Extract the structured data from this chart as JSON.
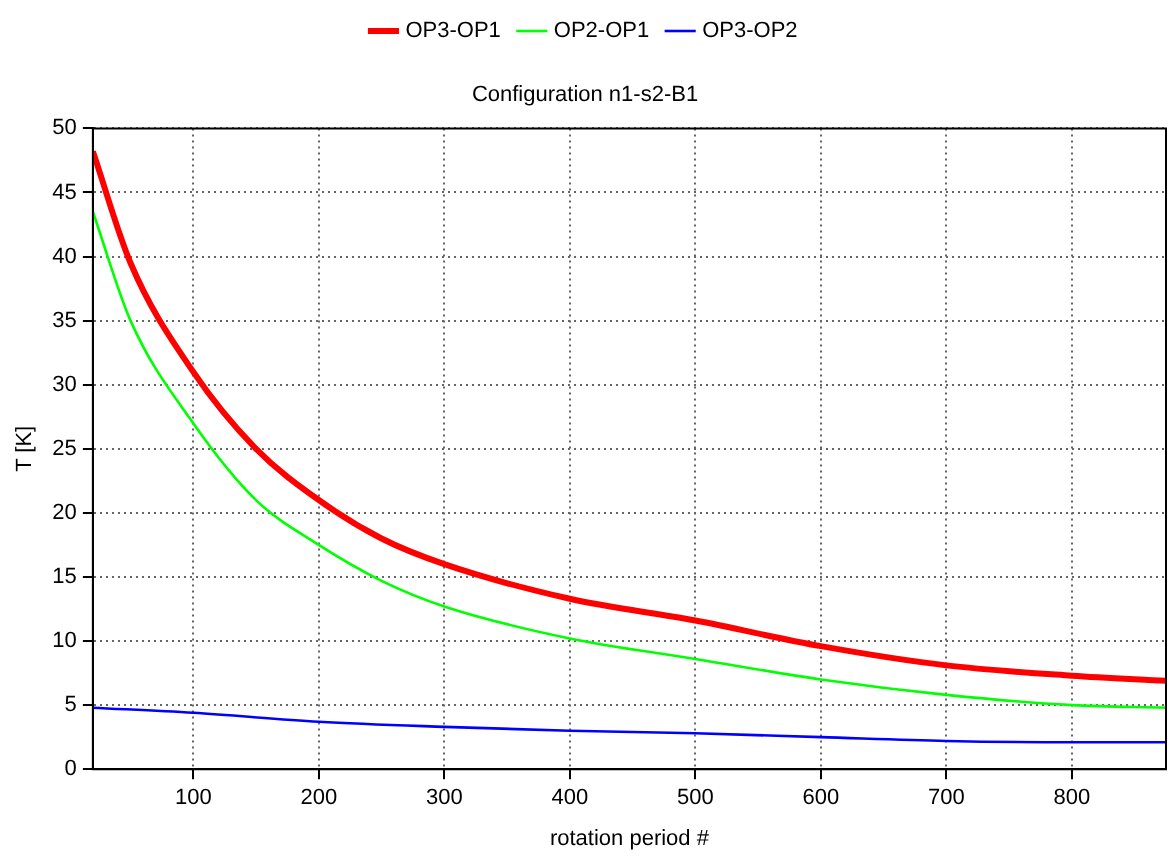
{
  "chart_data": {
    "type": "line",
    "title": "Configuration n1-s2-B1",
    "xlabel": "rotation period #",
    "ylabel": "T [K]",
    "xlim": [
      20,
      875
    ],
    "xticks": [
      100,
      200,
      300,
      400,
      500,
      600,
      700,
      800
    ],
    "ylim": [
      0,
      50
    ],
    "yticks": [
      0,
      5,
      10,
      15,
      20,
      25,
      30,
      35,
      40,
      45,
      50
    ],
    "grid": true,
    "legend": "top",
    "marker": "none",
    "line_style": "solid",
    "series": [
      {
        "name": "OP3-OP1",
        "color": "#ff0000",
        "x": [
          20,
          50,
          100,
          150,
          200,
          250,
          300,
          400,
          500,
          600,
          700,
          800,
          875
        ],
        "values": [
          48.2,
          39.5,
          31,
          25,
          21,
          18,
          16,
          13.3,
          11.6,
          9.6,
          8.1,
          7.3,
          6.9
        ]
      },
      {
        "name": "OP2-OP1",
        "color": "#00ff00",
        "x": [
          20,
          50,
          100,
          150,
          200,
          250,
          300,
          400,
          500,
          600,
          700,
          800,
          875
        ],
        "values": [
          43.5,
          35,
          27,
          21,
          17.5,
          14.7,
          12.7,
          10.2,
          8.6,
          7,
          5.8,
          5,
          4.8
        ]
      },
      {
        "name": "OP3-OP2",
        "color": "#0000ff",
        "x": [
          20,
          100,
          200,
          300,
          400,
          500,
          600,
          700,
          800,
          875
        ],
        "values": [
          4.8,
          4.4,
          3.7,
          3.3,
          3,
          2.8,
          2.5,
          2.2,
          2.1,
          2.1
        ]
      }
    ]
  }
}
